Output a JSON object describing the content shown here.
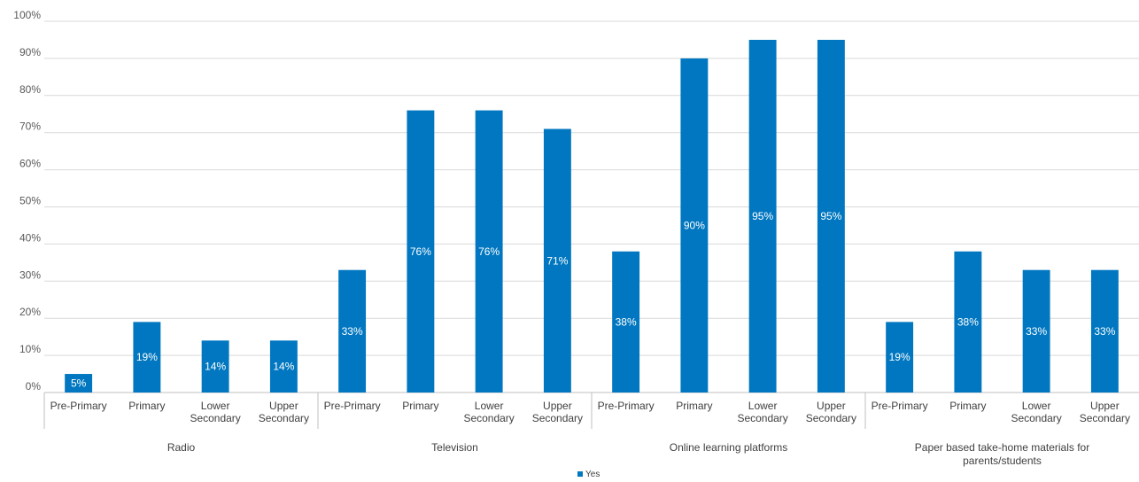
{
  "chart_data": {
    "type": "bar",
    "groups": [
      {
        "label": "Radio",
        "categories": [
          "Pre-Primary",
          "Primary",
          "Lower Secondary",
          "Upper Secondary"
        ],
        "values": [
          5,
          19,
          14,
          14
        ],
        "labels": [
          "5%",
          "19%",
          "14%",
          "14%"
        ]
      },
      {
        "label": "Television",
        "categories": [
          "Pre-Primary",
          "Primary",
          "Lower Secondary",
          "Upper Secondary"
        ],
        "values": [
          33,
          76,
          76,
          71
        ],
        "labels": [
          "33%",
          "76%",
          "76%",
          "71%"
        ]
      },
      {
        "label": "Online learning platforms",
        "categories": [
          "Pre-Primary",
          "Primary",
          "Lower Secondary",
          "Upper Secondary"
        ],
        "values": [
          38,
          90,
          95,
          95
        ],
        "labels": [
          "38%",
          "90%",
          "95%",
          "95%"
        ]
      },
      {
        "label": "Paper based take-home materials for parents/students",
        "categories": [
          "Pre-Primary",
          "Primary",
          "Lower Secondary",
          "Upper Secondary"
        ],
        "values": [
          19,
          38,
          33,
          33
        ],
        "labels": [
          "19%",
          "38%",
          "33%",
          "33%"
        ]
      }
    ],
    "series": [
      {
        "name": "Yes",
        "color": "#0077c0"
      }
    ],
    "yticks": [
      "0%",
      "10%",
      "20%",
      "30%",
      "40%",
      "50%",
      "60%",
      "70%",
      "80%",
      "90%",
      "100%"
    ],
    "ylim": [
      0,
      100
    ],
    "grid": true,
    "legend": "bottom-center"
  }
}
